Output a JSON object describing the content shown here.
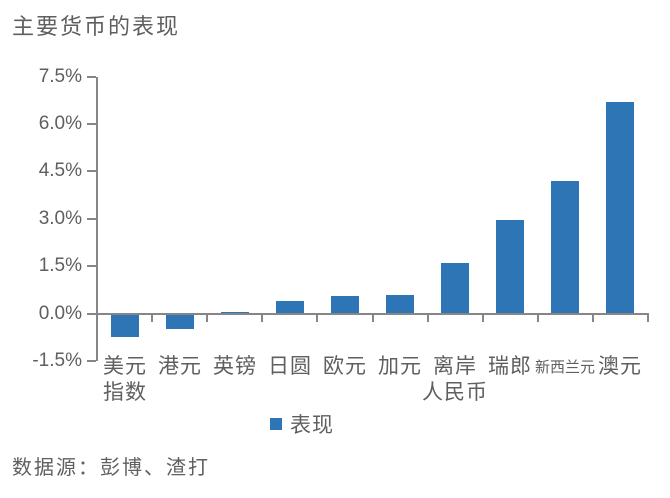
{
  "chart_data": {
    "type": "bar",
    "title": "主要货币的表现",
    "categories": [
      "美元指数",
      "港元",
      "英镑",
      "日圆",
      "欧元",
      "加元",
      "离岸人民币",
      "瑞郎",
      "新西兰元",
      "澳元"
    ],
    "x_label_lines": [
      [
        "美元",
        "指数"
      ],
      [
        "港元"
      ],
      [
        "英镑"
      ],
      [
        "日圆"
      ],
      [
        "欧元"
      ],
      [
        "加元"
      ],
      [
        "离岸",
        "人民币"
      ],
      [
        "瑞郎"
      ],
      [
        "新西兰元"
      ],
      [
        "澳元"
      ]
    ],
    "x_label_small": [
      false,
      false,
      false,
      false,
      false,
      false,
      false,
      false,
      true,
      false
    ],
    "series": [
      {
        "name": "表现",
        "values": [
          -0.75,
          -0.5,
          0.05,
          0.4,
          0.55,
          0.6,
          1.6,
          2.95,
          4.2,
          6.7
        ]
      }
    ],
    "xlabel": "",
    "ylabel": "",
    "ylim": [
      -1.5,
      7.5
    ],
    "ytick_step": 1.5,
    "ytick_labels": [
      "7.5%",
      "6.0%",
      "4.5%",
      "3.0%",
      "1.5%",
      "0.0%",
      "-1.5%"
    ],
    "grid": false,
    "legend": {
      "label": "表现",
      "position": "bottom"
    },
    "bar_color": "#2E75B6",
    "axis_color": "#868686",
    "text_color": "#5F5F5F",
    "source": "数据源：彭博、渣打"
  }
}
